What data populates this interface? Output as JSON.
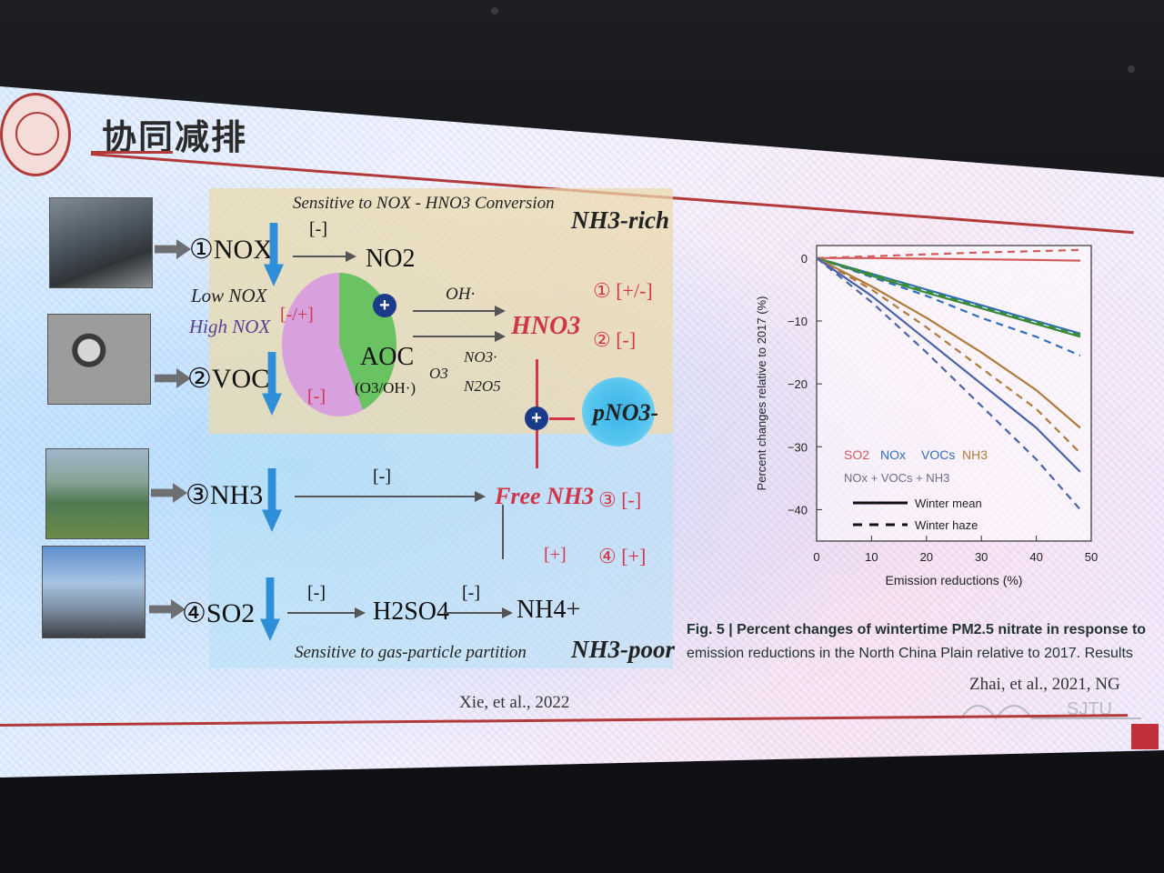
{
  "slide": {
    "title": "协同减排",
    "logo_text": "SJTU"
  },
  "diagram": {
    "header_sensitive": "Sensitive to NOX - HNO3 Conversion",
    "nh3_rich": "NH3-rich",
    "nh3_poor": "NH3-poor",
    "footer_sensitive": "Sensitive to gas-particle partition",
    "sources": [
      "①NOX",
      "②VOC",
      "③NH3",
      "④SO2"
    ],
    "low_nox": "Low NOX",
    "high_nox": "High NOX",
    "no2": "NO2",
    "aoc": "AOC",
    "aoc_sub": "(O3/OH·)",
    "oh": "OH·",
    "hno3": "HNO3",
    "o3": "O3",
    "no3": "NO3·",
    "n2o5": "N2O5",
    "pno3": "pNO3-",
    "free_nh3": "Free NH3",
    "h2so4": "H2SO4",
    "nh4": "NH4+",
    "effects_rich": [
      "① [+/-]",
      "② [-]"
    ],
    "effects_poor": [
      "③ [-]",
      "④ [+]"
    ],
    "signs": {
      "nox_no2": "[-]",
      "pie_top": "[-/+]",
      "pie_bottom": "[-]",
      "nh3": "[-]",
      "so2": "[-]",
      "h2so4": "[-]",
      "nh4_up": "[+]"
    },
    "citation": "Xie, et al., 2022"
  },
  "chart_data": {
    "type": "line",
    "xlabel": "Emission reductions (%)",
    "ylabel": "Percent changes relative to 2017 (%)",
    "xlim": [
      0,
      50
    ],
    "ylim": [
      -45,
      2
    ],
    "xticks": [
      "0",
      "10",
      "20",
      "30",
      "40",
      "50"
    ],
    "yticks": [
      "0",
      "−10",
      "−20",
      "−30",
      "−40"
    ],
    "legend": {
      "species": [
        "SO2",
        "NOx",
        "VOCs",
        "NH3"
      ],
      "combo": "NOx + VOCs + NH3",
      "winter_mean": "Winter mean",
      "winter_haze": "Winter haze"
    },
    "series": [
      {
        "name": "SO2",
        "style": "solid",
        "color": "#d45b5b",
        "x": [
          0,
          10,
          20,
          30,
          40,
          48
        ],
        "y": [
          0,
          0,
          -0.1,
          -0.2,
          -0.3,
          -0.4
        ]
      },
      {
        "name": "SO2",
        "style": "dashed",
        "color": "#d45b5b",
        "x": [
          0,
          10,
          20,
          30,
          40,
          48
        ],
        "y": [
          0,
          0.3,
          0.6,
          0.9,
          1.1,
          1.3
        ]
      },
      {
        "name": "NOx",
        "style": "solid",
        "color": "#2f6fbf",
        "x": [
          0,
          10,
          20,
          30,
          40,
          48
        ],
        "y": [
          0,
          -2.5,
          -5,
          -7.5,
          -10,
          -12
        ]
      },
      {
        "name": "NOx",
        "style": "dashed",
        "color": "#2f6fbf",
        "x": [
          0,
          10,
          20,
          30,
          40,
          48
        ],
        "y": [
          0,
          -3,
          -6,
          -9.5,
          -12.5,
          -15.5
        ]
      },
      {
        "name": "VOCs",
        "style": "solid",
        "color": "#3a8a3a",
        "x": [
          0,
          10,
          20,
          30,
          40,
          48
        ],
        "y": [
          0,
          -2.8,
          -5.5,
          -8,
          -10.5,
          -12.5
        ]
      },
      {
        "name": "VOCs",
        "style": "dashed",
        "color": "#3a8a3a",
        "x": [
          0,
          10,
          20,
          30,
          40,
          48
        ],
        "y": [
          0,
          -2.5,
          -5.2,
          -7.8,
          -10.2,
          -12.2
        ]
      },
      {
        "name": "NH3",
        "style": "solid",
        "color": "#b07a3a",
        "x": [
          0,
          10,
          20,
          30,
          40,
          48
        ],
        "y": [
          0,
          -4.5,
          -9.5,
          -15,
          -21,
          -27
        ]
      },
      {
        "name": "NH3",
        "style": "dashed",
        "color": "#b07a3a",
        "x": [
          0,
          10,
          20,
          30,
          40,
          48
        ],
        "y": [
          0,
          -5,
          -11,
          -17.5,
          -24,
          -31
        ]
      },
      {
        "name": "NOx + VOCs + NH3",
        "style": "solid",
        "color": "#4a63a8",
        "x": [
          0,
          10,
          20,
          30,
          40,
          48
        ],
        "y": [
          0,
          -6,
          -13,
          -20,
          -27,
          -34
        ]
      },
      {
        "name": "NOx + VOCs + NH3",
        "style": "dashed",
        "color": "#4a63a8",
        "x": [
          0,
          10,
          20,
          30,
          40,
          48
        ],
        "y": [
          0,
          -7,
          -15,
          -23.5,
          -32,
          -40
        ]
      }
    ],
    "caption_bold": "Fig. 5 | Percent changes of wintertime PM2.5 nitrate in response to",
    "caption_rest": "emission reductions in the North China Plain relative to 2017. Results",
    "citation": "Zhai, et al., 2021, NG"
  }
}
